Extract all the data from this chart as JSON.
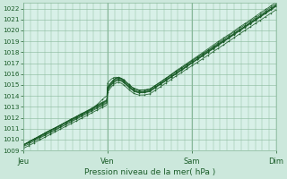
{
  "title": "Pression niveau de la mer( hPa )",
  "bg_color": "#cce8dc",
  "plot_bg_color": "#d8f0e8",
  "grid_color": "#88b89a",
  "line_color": "#1a5c28",
  "ylim": [
    1009,
    1022.5
  ],
  "yticks": [
    1009,
    1010,
    1011,
    1012,
    1013,
    1014,
    1015,
    1016,
    1017,
    1018,
    1019,
    1020,
    1021,
    1022
  ],
  "day_labels": [
    "Jeu",
    "Ven",
    "Sam",
    "Dim"
  ],
  "day_positions": [
    0,
    96,
    192,
    288
  ],
  "total_points": 289,
  "xlabel_color": "#1a5c28",
  "tick_color": "#1a5c28",
  "ylabel_fontsize": 5.2,
  "xlabel_fontsize": 6.5,
  "tick_label_fontsize": 6.0
}
